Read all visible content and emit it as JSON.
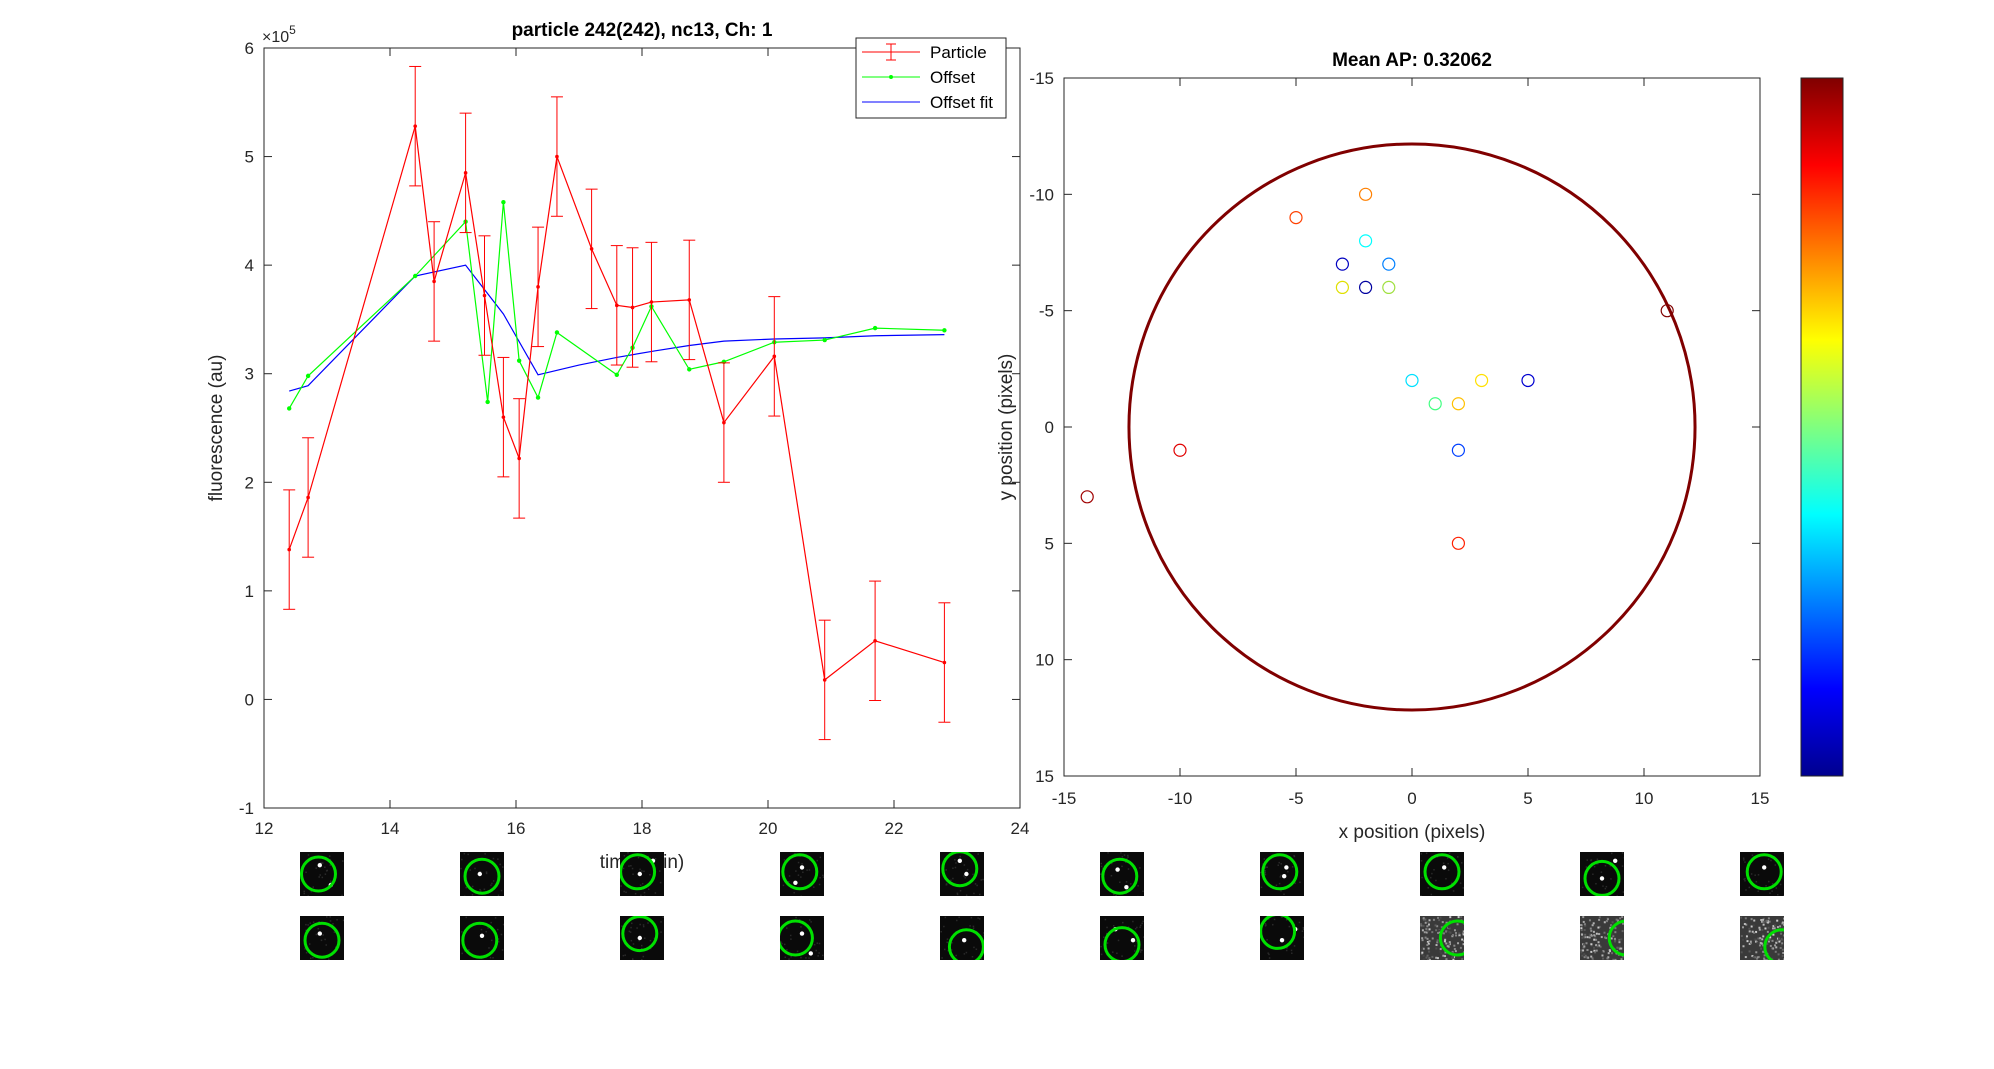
{
  "chart_data": [
    {
      "type": "line",
      "title": "particle 242(242), nc13, Ch: 1",
      "xlabel": "time (min)",
      "ylabel": "fluorescence (au)",
      "y_exponent_label": "×10",
      "y_exponent_power": "5",
      "xlim": [
        12,
        24
      ],
      "ylim": [
        -1,
        6
      ],
      "xticks": [
        12,
        14,
        16,
        18,
        20,
        22,
        24
      ],
      "yticks": [
        -1,
        0,
        1,
        2,
        3,
        4,
        5,
        6
      ],
      "grid": false,
      "legend_position": "top-right",
      "series": [
        {
          "name": "Particle",
          "color": "#ff0000",
          "error_bars": true,
          "x": [
            12.4,
            12.7,
            14.4,
            14.7,
            15.2,
            15.5,
            15.8,
            16.05,
            16.35,
            16.65,
            17.2,
            17.6,
            17.85,
            18.15,
            18.75,
            19.3,
            20.1,
            20.9,
            21.7,
            22.8
          ],
          "y": [
            1.38,
            1.86,
            5.28,
            3.85,
            4.85,
            3.72,
            2.6,
            2.22,
            3.8,
            5.0,
            4.15,
            3.63,
            3.61,
            3.66,
            3.68,
            2.55,
            3.16,
            0.18,
            0.54,
            0.34
          ],
          "err": [
            0.55,
            0.55,
            0.55,
            0.55,
            0.55,
            0.55,
            0.55,
            0.55,
            0.55,
            0.55,
            0.55,
            0.55,
            0.55,
            0.55,
            0.55,
            0.55,
            0.55,
            0.55,
            0.55,
            0.55
          ]
        },
        {
          "name": "Offset",
          "color": "#00ff00",
          "markers": true,
          "x": [
            12.4,
            12.7,
            14.4,
            15.2,
            15.55,
            15.8,
            16.05,
            16.35,
            16.65,
            17.6,
            17.85,
            18.15,
            18.75,
            19.3,
            20.1,
            20.9,
            21.7,
            22.8
          ],
          "y": [
            2.68,
            2.98,
            3.9,
            4.4,
            2.74,
            4.58,
            3.12,
            2.78,
            3.38,
            2.99,
            3.24,
            3.62,
            3.04,
            3.11,
            3.29,
            3.31,
            3.42,
            3.4
          ]
        },
        {
          "name": "Offset fit",
          "color": "#0000ff",
          "x": [
            12.4,
            12.7,
            14.4,
            15.2,
            15.8,
            16.35,
            17.0,
            17.6,
            18.2,
            18.75,
            19.3,
            20.1,
            20.9,
            21.7,
            22.8
          ],
          "y": [
            2.84,
            2.89,
            3.9,
            4.0,
            3.55,
            2.99,
            3.08,
            3.15,
            3.21,
            3.26,
            3.3,
            3.32,
            3.33,
            3.35,
            3.36
          ]
        }
      ]
    },
    {
      "type": "scatter",
      "title": "Mean AP: 0.32062",
      "xlabel": "x position (pixels)",
      "ylabel": "y position (pixels)",
      "xlim": [
        -15,
        15
      ],
      "ylim": [
        -15,
        15
      ],
      "y_reversed": true,
      "xticks": [
        -15,
        -10,
        -5,
        0,
        5,
        10,
        15
      ],
      "yticks": [
        -15,
        -10,
        -5,
        0,
        5,
        10,
        15
      ],
      "grid": false,
      "circle": {
        "center": [
          0,
          0
        ],
        "radius": 12.2,
        "color": "#800000"
      },
      "colorbar": {
        "colormap": "jet",
        "tick_labels": false
      },
      "points": [
        {
          "x": -2,
          "y": -10,
          "color": "#ff8000"
        },
        {
          "x": -5,
          "y": -9,
          "color": "#ff4000"
        },
        {
          "x": -2,
          "y": -8,
          "color": "#00ffff"
        },
        {
          "x": -3,
          "y": -7,
          "color": "#0000c0"
        },
        {
          "x": -1,
          "y": -7,
          "color": "#0080ff"
        },
        {
          "x": -3,
          "y": -6,
          "color": "#e0e000"
        },
        {
          "x": -2,
          "y": -6,
          "color": "#0000a0"
        },
        {
          "x": -1,
          "y": -6,
          "color": "#a0e040"
        },
        {
          "x": 11,
          "y": -5,
          "color": "#800000"
        },
        {
          "x": 0,
          "y": -2,
          "color": "#00e0ff"
        },
        {
          "x": 3,
          "y": -2,
          "color": "#ffe000"
        },
        {
          "x": 5,
          "y": -2,
          "color": "#0000d0"
        },
        {
          "x": 1,
          "y": -1,
          "color": "#40ff80"
        },
        {
          "x": 2,
          "y": -1,
          "color": "#ffc000"
        },
        {
          "x": -10,
          "y": 1,
          "color": "#e00000"
        },
        {
          "x": 2,
          "y": 1,
          "color": "#0040ff"
        },
        {
          "x": -14,
          "y": 3,
          "color": "#a00000"
        },
        {
          "x": 2,
          "y": 5,
          "color": "#ff2000"
        }
      ]
    }
  ],
  "thumbnails": {
    "rows": [
      [
        {
          "type": "spot",
          "circle_x": 0.42,
          "circle_y": 0.5,
          "spots": [
            [
              0.45,
              0.3
            ],
            [
              0.7,
              0.75
            ]
          ]
        },
        {
          "type": "spot",
          "circle_x": 0.5,
          "circle_y": 0.55,
          "spots": [
            [
              0.45,
              0.5
            ]
          ]
        },
        {
          "type": "spot",
          "circle_x": 0.4,
          "circle_y": 0.45,
          "spots": [
            [
              0.45,
              0.5
            ],
            [
              0.75,
              0.2
            ]
          ]
        },
        {
          "type": "spot",
          "circle_x": 0.45,
          "circle_y": 0.45,
          "spots": [
            [
              0.5,
              0.35
            ],
            [
              0.35,
              0.7
            ]
          ]
        },
        {
          "type": "spot",
          "circle_x": 0.45,
          "circle_y": 0.38,
          "spots": [
            [
              0.45,
              0.2
            ],
            [
              0.6,
              0.5
            ]
          ]
        },
        {
          "type": "spot",
          "circle_x": 0.45,
          "circle_y": 0.55,
          "spots": [
            [
              0.4,
              0.4
            ],
            [
              0.6,
              0.8
            ]
          ]
        },
        {
          "type": "spot",
          "circle_x": 0.45,
          "circle_y": 0.45,
          "spots": [
            [
              0.6,
              0.35
            ],
            [
              0.55,
              0.55
            ]
          ]
        },
        {
          "type": "spot",
          "circle_x": 0.5,
          "circle_y": 0.45,
          "spots": [
            [
              0.55,
              0.35
            ]
          ]
        },
        {
          "type": "spot",
          "circle_x": 0.5,
          "circle_y": 0.6,
          "spots": [
            [
              0.5,
              0.6
            ],
            [
              0.8,
              0.2
            ]
          ]
        },
        {
          "type": "spot",
          "circle_x": 0.55,
          "circle_y": 0.45,
          "spots": [
            [
              0.55,
              0.35
            ]
          ]
        }
      ],
      [
        {
          "type": "spot",
          "circle_x": 0.5,
          "circle_y": 0.55,
          "spots": [
            [
              0.45,
              0.4
            ]
          ]
        },
        {
          "type": "spot",
          "circle_x": 0.45,
          "circle_y": 0.55,
          "spots": [
            [
              0.5,
              0.45
            ]
          ]
        },
        {
          "type": "spot",
          "circle_x": 0.45,
          "circle_y": 0.4,
          "spots": [
            [
              0.45,
              0.5
            ]
          ]
        },
        {
          "type": "spot",
          "circle_x": 0.35,
          "circle_y": 0.5,
          "spots": [
            [
              0.5,
              0.4
            ],
            [
              0.7,
              0.85
            ]
          ]
        },
        {
          "type": "spot",
          "circle_x": 0.6,
          "circle_y": 0.7,
          "spots": [
            [
              0.55,
              0.55
            ]
          ]
        },
        {
          "type": "spot",
          "circle_x": 0.5,
          "circle_y": 0.65,
          "spots": [
            [
              0.75,
              0.55
            ],
            [
              0.35,
              0.3
            ]
          ]
        },
        {
          "type": "spot",
          "circle_x": 0.4,
          "circle_y": 0.35,
          "spots": [
            [
              0.5,
              0.55
            ],
            [
              0.8,
              0.3
            ]
          ]
        },
        {
          "type": "noise",
          "circle_x": 0.85,
          "circle_y": 0.5,
          "spots": []
        },
        {
          "type": "noise",
          "circle_x": 1.05,
          "circle_y": 0.5,
          "spots": []
        },
        {
          "type": "noise",
          "circle_x": 0.95,
          "circle_y": 0.7,
          "spots": []
        }
      ]
    ]
  }
}
